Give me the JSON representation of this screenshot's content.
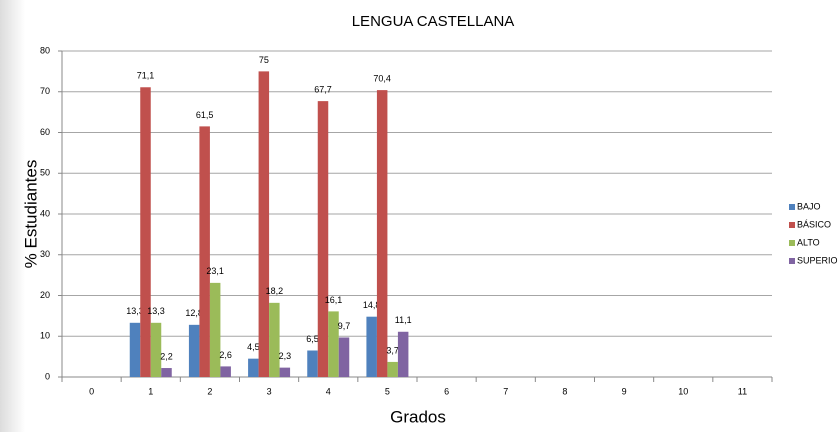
{
  "chart_data": {
    "type": "bar",
    "title": "LENGUA CASTELLANA",
    "x_label": "Grados",
    "y_label": "% Estudiantes",
    "categories": [
      "0",
      "1",
      "2",
      "3",
      "4",
      "5",
      "6",
      "7",
      "8",
      "9",
      "10",
      "11"
    ],
    "series": [
      {
        "name": "BAJO",
        "color": "#4f81bd",
        "values": [
          null,
          13.3,
          12.8,
          4.5,
          6.5,
          14.8,
          null,
          null,
          null,
          null,
          null,
          null
        ],
        "value_labels": [
          null,
          "13,3",
          "12,8",
          "4,5",
          "6,5",
          "14,8",
          null,
          null,
          null,
          null,
          null,
          null
        ]
      },
      {
        "name": "BÁSICO",
        "color": "#c0504d",
        "values": [
          null,
          71.1,
          61.5,
          75,
          67.7,
          70.4,
          null,
          null,
          null,
          null,
          null,
          null
        ],
        "value_labels": [
          null,
          "71,1",
          "61,5",
          "75",
          "67,7",
          "70,4",
          null,
          null,
          null,
          null,
          null,
          null
        ]
      },
      {
        "name": "ALTO",
        "color": "#9bbb59",
        "values": [
          null,
          13.3,
          23.1,
          18.2,
          16.1,
          3.7,
          null,
          null,
          null,
          null,
          null,
          null
        ],
        "value_labels": [
          null,
          "13,3",
          "23,1",
          "18,2",
          "16,1",
          "3,7",
          null,
          null,
          null,
          null,
          null,
          null
        ]
      },
      {
        "name": "SUPERIOR",
        "color": "#8064a2",
        "values": [
          null,
          2.2,
          2.6,
          2.3,
          9.7,
          11.1,
          null,
          null,
          null,
          null,
          null,
          null
        ],
        "value_labels": [
          null,
          "2,2",
          "2,6",
          "2,3",
          "9,7",
          "11,1",
          null,
          null,
          null,
          null,
          null,
          null
        ]
      }
    ],
    "ylim": [
      0,
      80
    ],
    "yticks": [
      0,
      10,
      20,
      30,
      40,
      50,
      60,
      70,
      80
    ],
    "grid": true,
    "legend": "right"
  }
}
